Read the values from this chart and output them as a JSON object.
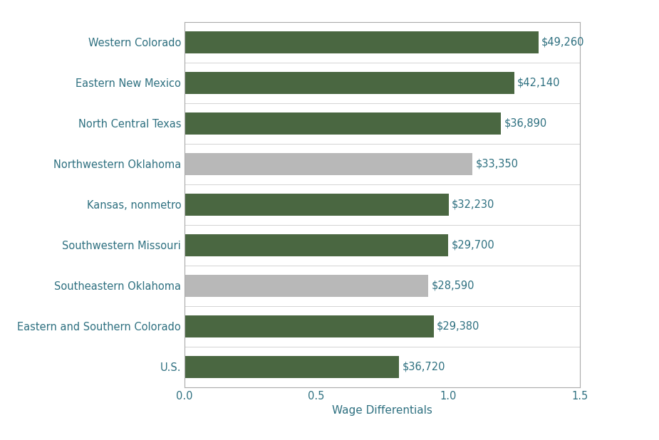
{
  "categories": [
    "U.S.",
    "Eastern and Southern Colorado",
    "Southeastern Oklahoma",
    "Southwestern Missouri",
    "Kansas, nonmetro",
    "Northwestern Oklahoma",
    "North Central Texas",
    "Eastern New Mexico",
    "Western Colorado"
  ],
  "values": [
    0.813,
    0.945,
    0.924,
    1.0,
    1.002,
    1.093,
    1.2,
    1.25,
    1.342
  ],
  "wages": [
    "$36,720",
    "$29,380",
    "$28,590",
    "$29,700",
    "$32,230",
    "$33,350",
    "$36,890",
    "$42,140",
    "$49,260"
  ],
  "colors": [
    "#4a6741",
    "#4a6741",
    "#b8b8b8",
    "#4a6741",
    "#4a6741",
    "#b8b8b8",
    "#4a6741",
    "#4a6741",
    "#4a6741"
  ],
  "xlabel": "Wage Differentials",
  "xlim": [
    0.0,
    1.5
  ],
  "xticks": [
    0.0,
    0.5,
    1.0,
    1.5
  ],
  "background_color": "#ffffff",
  "text_color": "#2e7080",
  "label_fontsize": 10.5,
  "tick_fontsize": 10.5,
  "xlabel_fontsize": 11,
  "bar_height": 0.55,
  "spine_color": "#aaaaaa",
  "grid_color": "#cccccc"
}
